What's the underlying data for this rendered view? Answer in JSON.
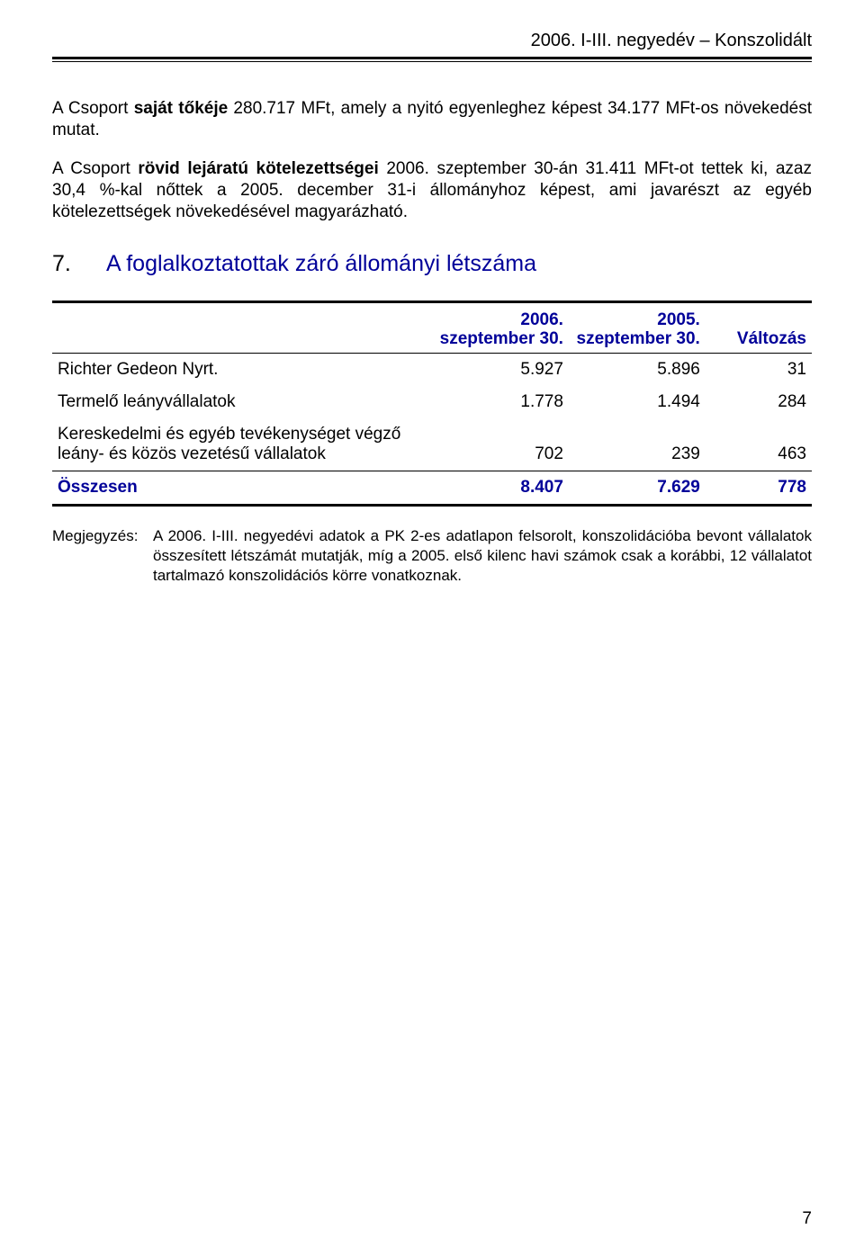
{
  "header": {
    "text": "2006. I-III. negyedév – Konszolidált"
  },
  "para1_html": "A Csoport <b>saját tőkéje</b> 280.717 MFt, amely a nyitó egyenleghez képest 34.177 MFt-os növekedést mutat.",
  "para2_html": "A Csoport <b>rövid lejáratú kötelezettségei</b> 2006. szeptember 30-án 31.411 MFt-ot tettek ki, azaz 30,4 %-kal nőttek a 2005. december 31-i állományhoz képest, ami javarészt az egyéb kötelezettségek növekedésével magyarázható.",
  "section": {
    "num": "7.",
    "title": "A foglalkoztatottak záró állományi létszáma"
  },
  "table": {
    "columns": [
      {
        "label": "",
        "width": "50%"
      },
      {
        "label": "2006.\nszeptember 30.",
        "width": "18%"
      },
      {
        "label": "2005.\nszeptember 30.",
        "width": "18%"
      },
      {
        "label": "Változás",
        "width": "14%"
      }
    ],
    "rows": [
      {
        "label": "Richter Gedeon Nyrt.",
        "c1": "5.927",
        "c2": "5.896",
        "c3": "31"
      },
      {
        "label": "Termelő leányvállalatok",
        "c1": "1.778",
        "c2": "1.494",
        "c3": "284"
      },
      {
        "label": "Kereskedelmi és egyéb tevékenységet végző leány- és közös vezetésű vállalatok",
        "c1": "702",
        "c2": "239",
        "c3": "463"
      }
    ],
    "total": {
      "label": "Összesen",
      "c1": "8.407",
      "c2": "7.629",
      "c3": "778"
    }
  },
  "note": {
    "label": "Megjegyzés:",
    "body": "A 2006. I-III. negyedévi adatok a PK 2-es adatlapon felsorolt, konszolidációba bevont vállalatok összesített létszámát mutatják, míg a 2005. első kilenc havi számok csak a korábbi, 12 vállalatot tartalmazó konszolidációs körre vonatkoznak."
  },
  "pagenum": "7",
  "colors": {
    "accent": "#000099",
    "text": "#000000",
    "background": "#ffffff"
  }
}
